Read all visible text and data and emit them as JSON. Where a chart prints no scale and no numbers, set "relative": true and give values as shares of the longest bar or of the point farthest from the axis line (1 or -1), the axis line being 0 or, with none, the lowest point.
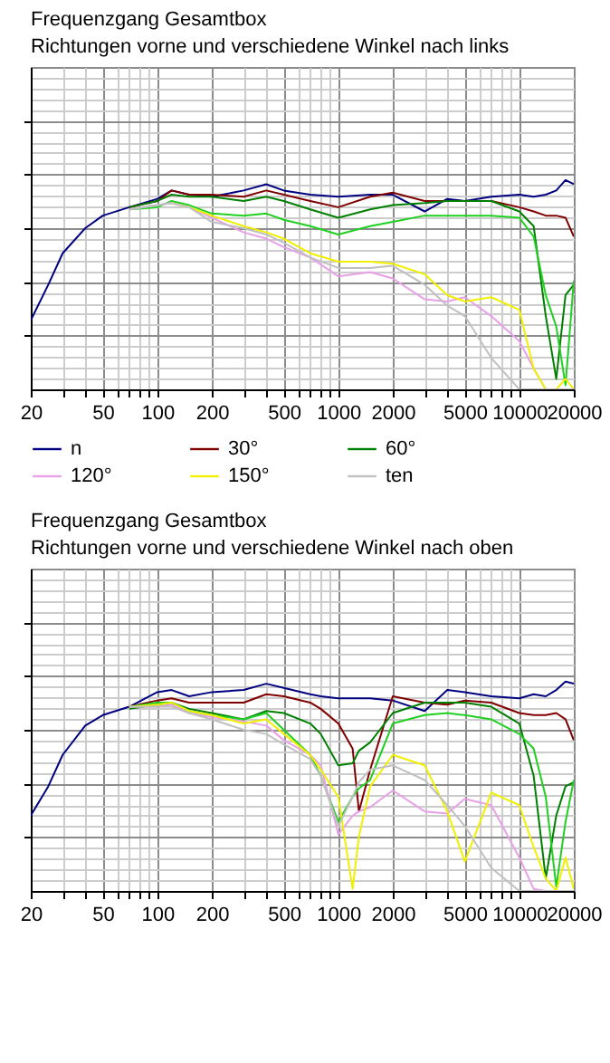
{
  "chart_data": [
    {
      "type": "line",
      "title": "Frequenzgang Gesamtbox",
      "subtitle": "Richtungen vorne und verschiedene Winkel nach links",
      "relative": true,
      "log": "x",
      "grid": true,
      "legend": "bottom",
      "tick_labels": "x",
      "xlim": [
        20,
        20000
      ],
      "xticks": [
        20,
        {
          "value": 30,
          "label": null
        },
        {
          "value": 40,
          "label": null
        },
        50,
        {
          "value": 60,
          "label": null
        },
        {
          "value": 70,
          "label": null
        },
        {
          "value": 80,
          "label": null
        },
        {
          "value": 90,
          "label": null
        },
        100,
        200,
        {
          "value": 300,
          "label": null
        },
        {
          "value": 400,
          "label": null
        },
        500,
        {
          "value": 600,
          "label": null
        },
        {
          "value": 700,
          "label": null
        },
        {
          "value": 800,
          "label": null
        },
        {
          "value": 900,
          "label": null
        },
        1000,
        2000,
        {
          "value": 3000,
          "label": null
        },
        {
          "value": 4000,
          "label": null
        },
        5000,
        {
          "value": 6000,
          "label": null
        },
        {
          "value": 7000,
          "label": null
        },
        {
          "value": 8000,
          "label": null
        },
        {
          "value": 9000,
          "label": null
        },
        10000,
        20000
      ],
      "x": [
        20,
        25,
        30,
        40,
        50,
        70,
        100,
        120,
        150,
        200,
        300,
        400,
        500,
        700,
        1000,
        1500,
        2000,
        3000,
        4000,
        5000,
        7000,
        10000,
        12000,
        14000,
        16000,
        18000,
        20000
      ],
      "series": [
        {
          "name": "n",
          "color": "#000080",
          "values": [
            0.33,
            0.5,
            0.65,
            0.77,
            0.83,
            0.87,
            0.91,
            0.95,
            0.93,
            0.92,
            0.95,
            0.98,
            0.95,
            0.93,
            0.92,
            0.93,
            0.93,
            0.85,
            0.91,
            0.9,
            0.92,
            0.93,
            0.92,
            0.93,
            0.95,
            1,
            0.98
          ]
        },
        {
          "name": "30°",
          "color": "#800000",
          "values": [
            null,
            null,
            null,
            null,
            null,
            0.87,
            0.9,
            0.95,
            0.93,
            0.93,
            0.92,
            0.95,
            0.93,
            0.9,
            0.87,
            0.92,
            0.94,
            0.9,
            0.9,
            0.9,
            0.9,
            0.87,
            0.85,
            0.83,
            0.83,
            0.82,
            0.73
          ]
        },
        {
          "name": "60°",
          "color": "#008000",
          "values": [
            null,
            null,
            null,
            null,
            null,
            0.87,
            0.9,
            0.93,
            0.92,
            0.92,
            0.9,
            0.92,
            0.9,
            0.86,
            0.82,
            0.86,
            0.88,
            0.89,
            0.9,
            0.9,
            0.9,
            0.85,
            0.78,
            0.35,
            0.05,
            0.45,
            0.5
          ]
        },
        {
          "color": "#20d020",
          "values": [
            null,
            null,
            null,
            null,
            null,
            0.86,
            0.87,
            0.9,
            0.88,
            0.84,
            0.83,
            0.84,
            0.81,
            0.78,
            0.74,
            0.78,
            0.8,
            0.83,
            0.83,
            0.83,
            0.83,
            0.82,
            0.73,
            0.45,
            0.3,
            0.02,
            0.52
          ]
        },
        {
          "name": "120°",
          "color": "#e8a0e8",
          "values": [
            null,
            null,
            null,
            null,
            null,
            0.86,
            0.88,
            0.89,
            0.87,
            0.82,
            0.75,
            0.72,
            0.68,
            0.63,
            0.54,
            0.56,
            0.53,
            0.43,
            0.42,
            0.44,
            0.35,
            0.23,
            0.1,
            0,
            0,
            0,
            0
          ]
        },
        {
          "name": "150°",
          "color": "#f0f000",
          "values": [
            null,
            null,
            null,
            null,
            null,
            null,
            null,
            0.89,
            0.87,
            0.83,
            0.78,
            0.75,
            0.72,
            0.65,
            0.61,
            0.61,
            0.6,
            0.55,
            0.45,
            0.42,
            0.44,
            0.38,
            0.1,
            0,
            0,
            0.05,
            0
          ]
        },
        {
          "name": "ten",
          "color": "#c0c0c0",
          "values": [
            null,
            null,
            null,
            null,
            null,
            0.86,
            0.88,
            0.89,
            0.87,
            0.8,
            0.77,
            0.74,
            0.7,
            0.63,
            0.58,
            0.58,
            0.59,
            0.5,
            0.4,
            0.35,
            0.15,
            0,
            0,
            0,
            0,
            0,
            0
          ]
        }
      ]
    },
    {
      "type": "line",
      "title": "Frequenzgang Gesamtbox",
      "subtitle": "Richtungen vorne und verschiedene Winkel nach oben",
      "relative": true,
      "log": "x",
      "grid": true,
      "tick_labels": "x",
      "xlim": [
        20,
        20000
      ],
      "xticks": [
        20,
        {
          "value": 30,
          "label": null
        },
        {
          "value": 40,
          "label": null
        },
        50,
        {
          "value": 60,
          "label": null
        },
        {
          "value": 70,
          "label": null
        },
        {
          "value": 80,
          "label": null
        },
        {
          "value": 90,
          "label": null
        },
        100,
        200,
        {
          "value": 300,
          "label": null
        },
        {
          "value": 400,
          "label": null
        },
        500,
        {
          "value": 600,
          "label": null
        },
        {
          "value": 700,
          "label": null
        },
        {
          "value": 800,
          "label": null
        },
        {
          "value": 900,
          "label": null
        },
        1000,
        2000,
        {
          "value": 3000,
          "label": null
        },
        {
          "value": 4000,
          "label": null
        },
        5000,
        {
          "value": 6000,
          "label": null
        },
        {
          "value": 7000,
          "label": null
        },
        {
          "value": 8000,
          "label": null
        },
        {
          "value": 9000,
          "label": null
        },
        10000,
        20000
      ],
      "x": [
        20,
        25,
        30,
        40,
        50,
        70,
        100,
        120,
        150,
        200,
        300,
        400,
        500,
        700,
        800,
        1000,
        1200,
        1300,
        1500,
        2000,
        3000,
        4000,
        5000,
        7000,
        10000,
        12000,
        14000,
        16000,
        18000,
        20000
      ],
      "series": [
        {
          "color": "#000080",
          "values": [
            0.36,
            0.5,
            0.65,
            0.79,
            0.84,
            0.88,
            0.95,
            0.96,
            0.93,
            0.95,
            0.96,
            0.99,
            0.97,
            0.94,
            0.93,
            0.92,
            0.92,
            0.92,
            0.92,
            0.91,
            0.86,
            0.96,
            0.95,
            0.93,
            0.92,
            0.94,
            0.93,
            0.96,
            1,
            0.99
          ]
        },
        {
          "color": "#800000",
          "values": [
            null,
            null,
            null,
            null,
            null,
            0.88,
            0.91,
            0.92,
            0.9,
            0.9,
            0.9,
            0.94,
            0.93,
            0.9,
            0.87,
            0.8,
            0.68,
            0.38,
            0.58,
            0.93,
            0.9,
            0.89,
            0.91,
            0.9,
            0.85,
            0.84,
            0.84,
            0.85,
            0.82,
            0.72
          ]
        },
        {
          "color": "#008000",
          "values": [
            null,
            null,
            null,
            null,
            null,
            0.87,
            0.89,
            0.9,
            0.87,
            0.85,
            0.82,
            0.86,
            0.85,
            0.8,
            0.75,
            0.6,
            0.61,
            0.67,
            0.71,
            0.85,
            0.9,
            0.9,
            0.9,
            0.88,
            0.8,
            0.55,
            0.06,
            0.36,
            0.5,
            0.52
          ]
        },
        {
          "color": "#20d020",
          "values": [
            null,
            null,
            null,
            null,
            null,
            0.88,
            0.9,
            0.9,
            0.86,
            0.84,
            0.82,
            0.85,
            0.77,
            0.65,
            0.55,
            0.33,
            0.45,
            0.49,
            0.53,
            0.8,
            0.84,
            0.85,
            0.84,
            0.82,
            0.75,
            0.68,
            0.45,
            0.02,
            0.33,
            0.53
          ]
        },
        {
          "color": "#e8a0e8",
          "values": [
            null,
            null,
            null,
            null,
            null,
            0.88,
            0.88,
            0.89,
            0.85,
            0.83,
            0.81,
            0.79,
            0.72,
            0.65,
            0.6,
            0.27,
            0.36,
            0.38,
            0.4,
            0.48,
            0.38,
            0.37,
            0.44,
            0.41,
            0.16,
            0.01,
            0,
            0,
            0,
            0
          ]
        },
        {
          "color": "#f0f000",
          "values": [
            null,
            null,
            null,
            null,
            null,
            0.88,
            0.89,
            0.9,
            0.86,
            0.84,
            0.8,
            0.82,
            0.75,
            0.65,
            0.58,
            0.45,
            0.01,
            0.26,
            0.5,
            0.65,
            0.6,
            0.38,
            0.14,
            0.47,
            0.41,
            0.21,
            0.06,
            0,
            0.16,
            0.01
          ]
        },
        {
          "color": "#c0c0c0",
          "values": [
            null,
            null,
            null,
            null,
            null,
            0.88,
            0.88,
            0.88,
            0.85,
            0.82,
            0.77,
            0.75,
            0.7,
            0.63,
            0.55,
            0.31,
            0.45,
            0.52,
            0.58,
            0.6,
            0.53,
            0.41,
            0.31,
            0.11,
            0,
            0,
            0,
            0,
            0,
            0
          ]
        }
      ]
    }
  ]
}
